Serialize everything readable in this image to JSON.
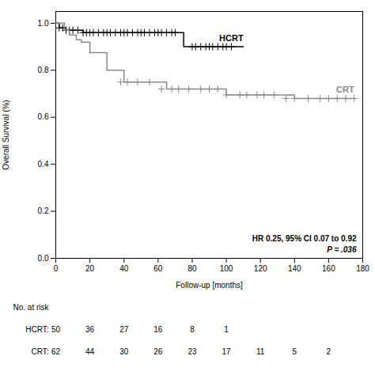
{
  "chart_data": {
    "type": "step",
    "xlabel": "Follow-up [months]",
    "ylabel": "Overall Survival (%)",
    "xlim": [
      0,
      180
    ],
    "ylim": [
      0.0,
      1.05
    ],
    "xticks": [
      0,
      20,
      40,
      60,
      80,
      100,
      120,
      140,
      160,
      180
    ],
    "yticks": [
      {
        "value": 0.0,
        "label": "0.0"
      },
      0.2,
      0.4,
      0.6,
      0.8,
      {
        "value": 1.0,
        "label": "1.0"
      }
    ],
    "series": [
      {
        "name": "HCRT",
        "color": "#000000",
        "x": [
          0,
          2,
          4,
          6,
          8,
          10,
          13,
          16,
          18,
          20,
          22,
          25,
          28,
          30,
          32,
          35,
          38,
          40,
          42,
          45,
          48,
          50,
          52,
          55,
          58,
          60,
          62,
          65,
          68,
          70,
          75,
          80,
          85,
          90,
          95,
          100,
          105,
          110
        ],
        "values": [
          1.0,
          0.98,
          0.98,
          0.97,
          0.97,
          0.97,
          0.97,
          0.96,
          0.96,
          0.96,
          0.96,
          0.96,
          0.96,
          0.96,
          0.96,
          0.96,
          0.96,
          0.96,
          0.96,
          0.96,
          0.96,
          0.96,
          0.96,
          0.96,
          0.96,
          0.96,
          0.96,
          0.96,
          0.96,
          0.96,
          0.9,
          0.9,
          0.9,
          0.9,
          0.9,
          0.9,
          0.9,
          0.9
        ],
        "censor_x": [
          2,
          4,
          6,
          8,
          10,
          13,
          16,
          18,
          20,
          22,
          25,
          28,
          30,
          32,
          35,
          38,
          40,
          42,
          45,
          48,
          50,
          52,
          55,
          58,
          60,
          62,
          65,
          68,
          70,
          80,
          82,
          85,
          88,
          90,
          92,
          95,
          98,
          100,
          103
        ],
        "censor_y": [
          0.98,
          0.98,
          0.97,
          0.97,
          0.97,
          0.97,
          0.96,
          0.96,
          0.96,
          0.96,
          0.96,
          0.96,
          0.96,
          0.96,
          0.96,
          0.96,
          0.96,
          0.96,
          0.96,
          0.96,
          0.96,
          0.96,
          0.96,
          0.96,
          0.96,
          0.96,
          0.96,
          0.96,
          0.96,
          0.9,
          0.9,
          0.9,
          0.9,
          0.9,
          0.9,
          0.9,
          0.9,
          0.9,
          0.9
        ]
      },
      {
        "name": "CRT",
        "color": "#888888",
        "x": [
          0,
          5,
          8,
          12,
          15,
          20,
          25,
          30,
          35,
          40,
          45,
          50,
          60,
          65,
          70,
          80,
          85,
          90,
          95,
          100,
          110,
          120,
          130,
          140,
          150,
          160,
          170,
          175
        ],
        "values": [
          1.0,
          0.97,
          0.95,
          0.93,
          0.92,
          0.875,
          0.875,
          0.8,
          0.8,
          0.75,
          0.75,
          0.75,
          0.75,
          0.72,
          0.72,
          0.72,
          0.72,
          0.72,
          0.72,
          0.695,
          0.695,
          0.695,
          0.695,
          0.68,
          0.68,
          0.68,
          0.68,
          0.68
        ],
        "censor_x": [
          38,
          42,
          48,
          55,
          62,
          68,
          72,
          78,
          85,
          90,
          95,
          100,
          108,
          112,
          118,
          122,
          128,
          135,
          140,
          148,
          155,
          160,
          165,
          170,
          175
        ],
        "censor_y": [
          0.75,
          0.75,
          0.75,
          0.75,
          0.72,
          0.72,
          0.72,
          0.72,
          0.72,
          0.72,
          0.72,
          0.695,
          0.695,
          0.695,
          0.695,
          0.695,
          0.695,
          0.68,
          0.68,
          0.68,
          0.68,
          0.68,
          0.68,
          0.68,
          0.68
        ]
      }
    ],
    "annotations": [
      "HR 0.25, 95% CI 0.07 to 0.92",
      "P = .036"
    ],
    "risk_table": {
      "title": "No. at risk",
      "rows": [
        {
          "name": "HCRT:",
          "x": [
            0,
            20,
            40,
            60,
            80,
            100
          ],
          "values": [
            50,
            36,
            27,
            16,
            8,
            1
          ]
        },
        {
          "name": "CRT:",
          "x": [
            0,
            20,
            40,
            60,
            80,
            100,
            120,
            140,
            160
          ],
          "values": [
            62,
            44,
            30,
            26,
            23,
            17,
            11,
            5,
            2
          ]
        }
      ]
    }
  }
}
